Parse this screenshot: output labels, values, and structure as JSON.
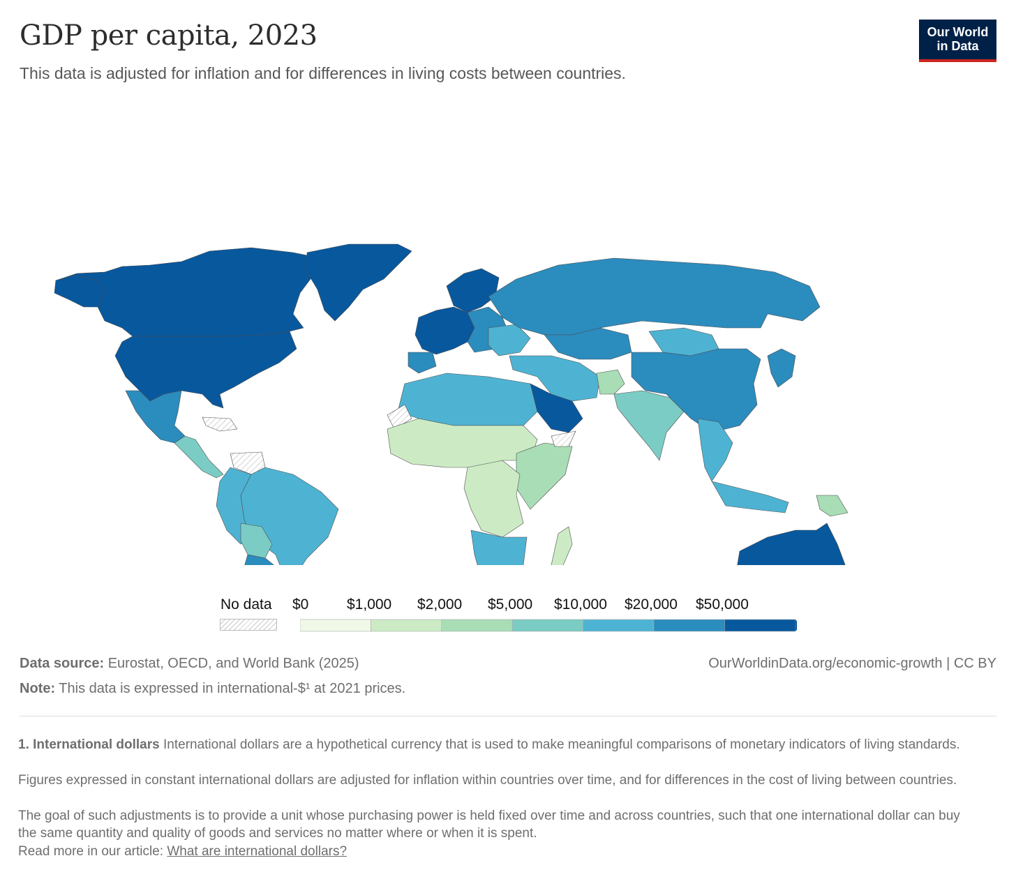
{
  "header": {
    "title": "GDP per capita, 2023",
    "subtitle": "This data is adjusted for inflation and for differences in living costs between countries.",
    "logo_line1": "Our World",
    "logo_line2": "in Data"
  },
  "map": {
    "colors": {
      "no_data": "#e0e0e0",
      "bin_0_1000": "#f0f9e8",
      "bin_1000_2000": "#ccebc5",
      "bin_2000_5000": "#a8ddb5",
      "bin_5000_10000": "#7bccc4",
      "bin_10000_20000": "#4eb3d3",
      "bin_20000_50000": "#2b8cbe",
      "bin_50000_plus": "#08589e",
      "border": "#555555"
    }
  },
  "legend": {
    "no_data_label": "No data",
    "labels": [
      "$0",
      "$1,000",
      "$2,000",
      "$5,000",
      "$10,000",
      "$20,000",
      "$50,000"
    ],
    "colors": [
      "#f0f9e8",
      "#ccebc5",
      "#a8ddb5",
      "#7bccc4",
      "#4eb3d3",
      "#2b8cbe",
      "#08589e"
    ]
  },
  "footer": {
    "source_label": "Data source:",
    "source_text": " Eurostat, OECD, and World Bank (2025)",
    "note_label": "Note:",
    "note_text": " This data is expressed in international-$¹ at 2021 prices.",
    "credit": "OurWorldinData.org/economic-growth | CC BY",
    "footnote_title": "1. International dollars",
    "footnote_p1": " International dollars are a hypothetical currency that is used to make meaningful comparisons of monetary indicators of living standards.",
    "footnote_p2": "Figures expressed in constant international dollars are adjusted for inflation within countries over time, and for differences in the cost of living between countries.",
    "footnote_p3": "The goal of such adjustments is to provide a unit whose purchasing power is held fixed over time and across countries, such that one international dollar can buy the same quantity and quality of goods and services no matter where or when it is spent.",
    "read_more": "Read more in our article: ",
    "read_more_link": "What are international dollars?"
  }
}
